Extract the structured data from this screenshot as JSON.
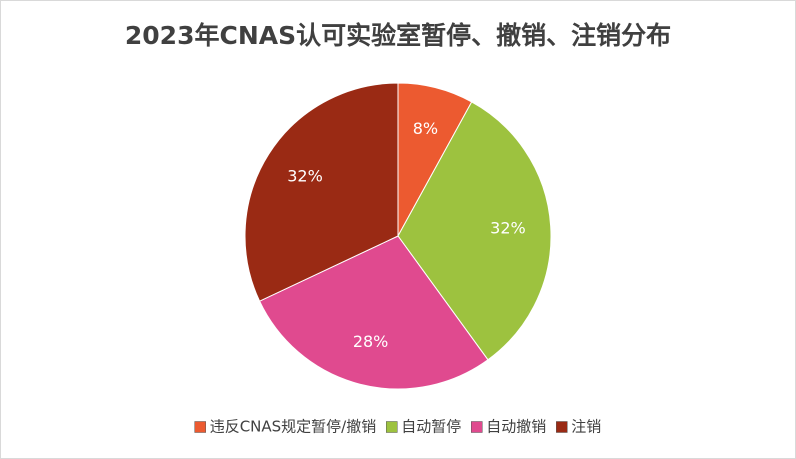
{
  "chart_data": {
    "type": "pie",
    "title": "2023年CNAS认可实验室暂停、撤销、注销分布",
    "categories": [
      "违反CNAS规定暂停/撤销",
      "自动暂停",
      "自动撤销",
      "注销"
    ],
    "values": [
      8,
      32,
      28,
      32
    ],
    "value_labels": [
      "8%",
      "32%",
      "28%",
      "32%"
    ],
    "colors": [
      "#ec5a30",
      "#9dc23f",
      "#e04a8f",
      "#9a2a14"
    ],
    "legend": "bottom"
  }
}
